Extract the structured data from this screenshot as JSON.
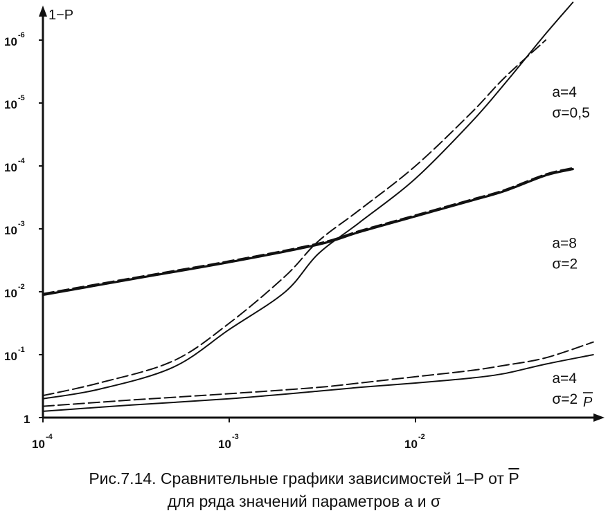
{
  "figure": {
    "caption_line1_prefix": "Рис.7.14. Сравнительные графики зависимостей 1–P от ",
    "caption_line1_symbol": "P",
    "caption_line2": "для ряда значений параметров a и σ"
  },
  "chart_data": {
    "type": "line",
    "xlabel": "P",
    "ylabel": "1−P",
    "x_scale": "log",
    "y_scale": "log (axis printed reversed, 1 at bottom, 10^-6 at top)",
    "xlim": [
      0.0001,
      0.1
    ],
    "ylim_exp": [
      0,
      6.4
    ],
    "x_ticks": [
      {
        "value": 0.0001,
        "base": "10",
        "exp": "-4"
      },
      {
        "value": 0.001,
        "base": "10",
        "exp": "-3"
      },
      {
        "value": 0.01,
        "base": "10",
        "exp": "-2"
      }
    ],
    "y_ticks": [
      {
        "exp_value": 0,
        "base": "1",
        "exp": ""
      },
      {
        "exp_value": 1,
        "base": "10",
        "exp": "-1"
      },
      {
        "exp_value": 2,
        "base": "10",
        "exp": "-2"
      },
      {
        "exp_value": 3,
        "base": "10",
        "exp": "-3"
      },
      {
        "exp_value": 4,
        "base": "10",
        "exp": "-4"
      },
      {
        "exp_value": 5,
        "base": "10",
        "exp": "-5"
      },
      {
        "exp_value": 6,
        "base": "10",
        "exp": "-6"
      }
    ],
    "annotations": [
      {
        "line1": "a=4",
        "line2": "σ=0,5",
        "at_x": 0.07,
        "at_exp": 5.1
      },
      {
        "line1": "a=8",
        "line2": "σ=2",
        "at_x": 0.07,
        "at_exp": 2.7
      },
      {
        "line1": "a=4",
        "line2": "σ=2",
        "at_x": 0.07,
        "at_exp": 0.55
      }
    ],
    "series": [
      {
        "group": "a=4 σ=0,5",
        "style": "solid",
        "x": [
          0.0001,
          0.0002,
          0.0005,
          0.001,
          0.002,
          0.003,
          0.005,
          0.01,
          0.02,
          0.03,
          0.05,
          0.07
        ],
        "y_exp": [
          0.3,
          0.45,
          0.8,
          1.4,
          2.0,
          2.6,
          3.1,
          3.8,
          4.7,
          5.3,
          6.1,
          6.6
        ]
      },
      {
        "group": "a=4 σ=0,5",
        "style": "dashed",
        "x": [
          0.0001,
          0.0002,
          0.0005,
          0.001,
          0.002,
          0.003,
          0.005,
          0.01,
          0.02,
          0.03,
          0.05
        ],
        "y_exp": [
          0.35,
          0.55,
          0.9,
          1.5,
          2.25,
          2.8,
          3.3,
          4.0,
          4.85,
          5.4,
          6.0
        ]
      },
      {
        "group": "a=8 σ=2",
        "style": "solid",
        "x": [
          0.0001,
          0.0003,
          0.001,
          0.003,
          0.005,
          0.01,
          0.02,
          0.03,
          0.05,
          0.07
        ],
        "y_exp": [
          1.95,
          2.2,
          2.47,
          2.75,
          2.95,
          3.2,
          3.45,
          3.6,
          3.85,
          3.95
        ]
      },
      {
        "group": "a=8 σ=2",
        "style": "dashed",
        "x": [
          0.0001,
          0.0003,
          0.001,
          0.003,
          0.005,
          0.01,
          0.02,
          0.03,
          0.05,
          0.07
        ],
        "y_exp": [
          1.97,
          2.22,
          2.49,
          2.77,
          2.97,
          3.22,
          3.47,
          3.62,
          3.87,
          3.97
        ]
      },
      {
        "group": "a=4 σ=2",
        "style": "solid",
        "x": [
          0.0001,
          0.0003,
          0.001,
          0.003,
          0.005,
          0.01,
          0.02,
          0.03,
          0.05,
          0.09
        ],
        "y_exp": [
          0.1,
          0.2,
          0.3,
          0.42,
          0.48,
          0.55,
          0.63,
          0.7,
          0.85,
          1.0
        ]
      },
      {
        "group": "a=4 σ=2",
        "style": "dashed",
        "x": [
          0.0001,
          0.0003,
          0.001,
          0.003,
          0.005,
          0.01,
          0.02,
          0.03,
          0.05,
          0.09
        ],
        "y_exp": [
          0.18,
          0.28,
          0.38,
          0.48,
          0.55,
          0.65,
          0.75,
          0.83,
          0.95,
          1.2
        ]
      }
    ]
  }
}
